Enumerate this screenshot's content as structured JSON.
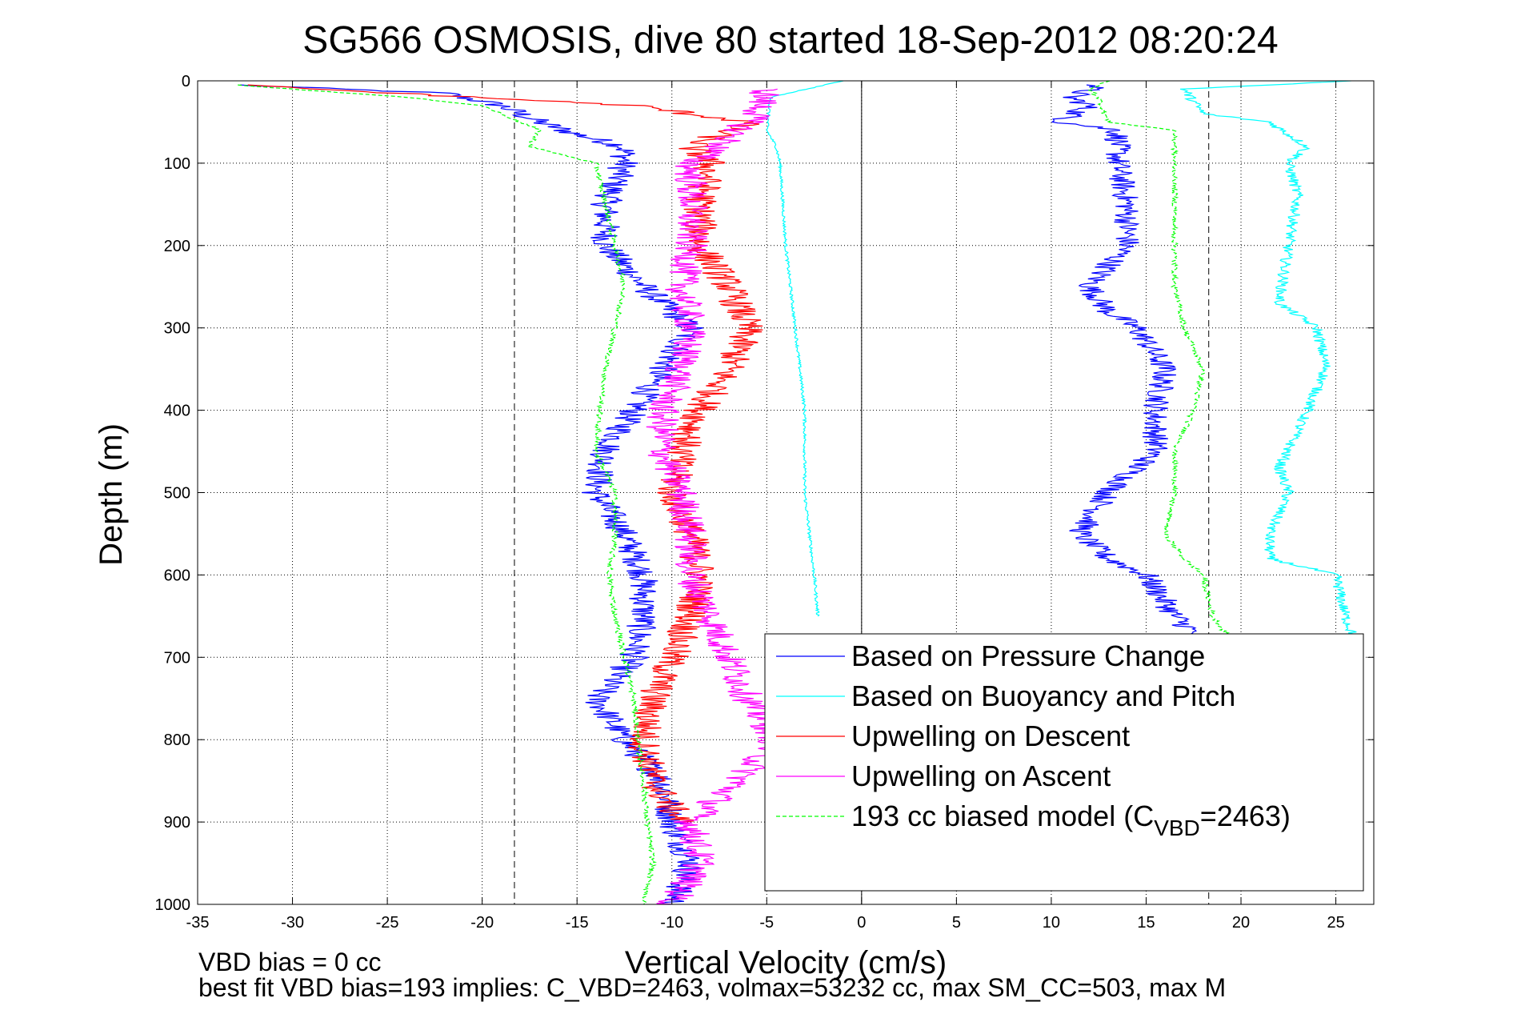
{
  "chart_data": {
    "type": "line",
    "title": "SG566 OSMOSIS, dive 80 started 18-Sep-2012 08:20:24",
    "xlabel": "Vertical Velocity (cm/s)",
    "ylabel": "Depth (m)",
    "xlim": [
      -35,
      27
    ],
    "ylim": [
      0,
      1000
    ],
    "y_reversed": true,
    "grid": true,
    "x_ticks": [
      "-35",
      "-30",
      "-25",
      "-20",
      "-15",
      "-10",
      "-5",
      "0",
      "5",
      "10",
      "15",
      "20",
      "25"
    ],
    "x_tick_values": [
      -35,
      -30,
      -25,
      -20,
      -15,
      -10,
      -5,
      0,
      5,
      10,
      15,
      20,
      25
    ],
    "y_ticks": [
      "0",
      "100",
      "200",
      "300",
      "400",
      "500",
      "600",
      "700",
      "800",
      "900",
      "1000"
    ],
    "y_tick_values": [
      0,
      100,
      200,
      300,
      400,
      500,
      600,
      700,
      800,
      900,
      1000
    ],
    "reference_lines": [
      {
        "x": 0,
        "style": "solid",
        "color": "#000000"
      },
      {
        "x": -18.3,
        "style": "dashed",
        "color": "#000000"
      },
      {
        "x": 18.3,
        "style": "dashed",
        "color": "#000000"
      }
    ],
    "legend_position": "lower-right",
    "legend": [
      {
        "label": "Based on Pressure Change",
        "color": "#0000ff",
        "dash": false
      },
      {
        "label": "Based on Buoyancy and Pitch",
        "color": "#00ffff",
        "dash": false
      },
      {
        "label": "Upwelling on Descent",
        "color": "#ff0000",
        "dash": false
      },
      {
        "label": "Upwelling on Ascent",
        "color": "#ff00ff",
        "dash": false
      },
      {
        "label_main": "193 cc biased model (C",
        "label_sub": "VBD",
        "label_tail": "=2463)",
        "color": "#00ff00",
        "dash": true
      }
    ],
    "series": [
      {
        "name": "Based on Pressure Change (descent)",
        "color": "#0000ff",
        "dash": false,
        "noise": 0.8,
        "points": [
          [
            -33,
            5
          ],
          [
            -22,
            15
          ],
          [
            -19,
            30
          ],
          [
            -17,
            50
          ],
          [
            -15,
            65
          ],
          [
            -12.5,
            80
          ],
          [
            -12.5,
            100
          ],
          [
            -13.5,
            150
          ],
          [
            -13.5,
            200
          ],
          [
            -11.5,
            250
          ],
          [
            -9,
            300
          ],
          [
            -10.5,
            350
          ],
          [
            -12,
            400
          ],
          [
            -13.5,
            450
          ],
          [
            -14,
            500
          ],
          [
            -12.5,
            550
          ],
          [
            -11.5,
            600
          ],
          [
            -11.5,
            650
          ],
          [
            -12,
            700
          ],
          [
            -14,
            750
          ],
          [
            -12.5,
            800
          ],
          [
            -10.5,
            850
          ],
          [
            -10,
            900
          ],
          [
            -9,
            950
          ],
          [
            -10,
            1000
          ]
        ]
      },
      {
        "name": "Based on Pressure Change (ascent)",
        "color": "#0000ff",
        "dash": false,
        "noise": 0.7,
        "points": [
          [
            12.5,
            5
          ],
          [
            11,
            20
          ],
          [
            12,
            30
          ],
          [
            10.5,
            50
          ],
          [
            13.5,
            60
          ],
          [
            13.5,
            100
          ],
          [
            14,
            150
          ],
          [
            14,
            200
          ],
          [
            12,
            250
          ],
          [
            13,
            280
          ],
          [
            14.5,
            300
          ],
          [
            16,
            350
          ],
          [
            15.5,
            400
          ],
          [
            15.5,
            450
          ],
          [
            13,
            500
          ],
          [
            11.5,
            550
          ],
          [
            13,
            580
          ],
          [
            15,
            600
          ],
          [
            16.5,
            650
          ],
          [
            18,
            680
          ]
        ]
      },
      {
        "name": "Based on Buoyancy and Pitch (descent)",
        "color": "#00ffff",
        "dash": false,
        "noise": 0.08,
        "points": [
          [
            -1,
            0
          ],
          [
            -4.8,
            20
          ],
          [
            -5,
            60
          ],
          [
            -4.5,
            80
          ],
          [
            -4.3,
            100
          ],
          [
            -4,
            200
          ],
          [
            -3.5,
            300
          ],
          [
            -3,
            400
          ],
          [
            -3,
            500
          ],
          [
            -2.5,
            600
          ],
          [
            -2.3,
            650
          ]
        ]
      },
      {
        "name": "Based on Buoyancy and Pitch (ascent)",
        "color": "#00ffff",
        "dash": false,
        "noise": 0.3,
        "points": [
          [
            26,
            0
          ],
          [
            17,
            10
          ],
          [
            18,
            40
          ],
          [
            21.5,
            50
          ],
          [
            23.5,
            80
          ],
          [
            22.5,
            100
          ],
          [
            23,
            140
          ],
          [
            22.5,
            200
          ],
          [
            22,
            270
          ],
          [
            24,
            300
          ],
          [
            24.5,
            350
          ],
          [
            23.5,
            400
          ],
          [
            22,
            470
          ],
          [
            22.5,
            500
          ],
          [
            21.5,
            550
          ],
          [
            21.5,
            580
          ],
          [
            25,
            600
          ],
          [
            25.5,
            650
          ],
          [
            26,
            680
          ]
        ]
      },
      {
        "name": "Upwelling on Descent",
        "color": "#ff0000",
        "dash": false,
        "noise": 0.9,
        "points": [
          [
            -33,
            5
          ],
          [
            -12,
            30
          ],
          [
            -6,
            50
          ],
          [
            -7,
            60
          ],
          [
            -9,
            80
          ],
          [
            -8,
            100
          ],
          [
            -8.5,
            150
          ],
          [
            -8.5,
            200
          ],
          [
            -7,
            250
          ],
          [
            -6,
            300
          ],
          [
            -7,
            350
          ],
          [
            -8.5,
            400
          ],
          [
            -9.5,
            450
          ],
          [
            -10,
            500
          ],
          [
            -9,
            550
          ],
          [
            -8.5,
            600
          ],
          [
            -9,
            650
          ],
          [
            -10,
            700
          ],
          [
            -11,
            750
          ],
          [
            -11.5,
            800
          ],
          [
            -11,
            850
          ],
          [
            -9.5,
            900
          ]
        ]
      },
      {
        "name": "Upwelling on Ascent",
        "color": "#ff00ff",
        "dash": false,
        "noise": 0.9,
        "points": [
          [
            -5,
            10
          ],
          [
            -5.5,
            40
          ],
          [
            -7.5,
            80
          ],
          [
            -9,
            100
          ],
          [
            -9,
            150
          ],
          [
            -9,
            200
          ],
          [
            -9.5,
            250
          ],
          [
            -9,
            300
          ],
          [
            -9.5,
            350
          ],
          [
            -10.5,
            400
          ],
          [
            -10.5,
            450
          ],
          [
            -9.5,
            500
          ],
          [
            -9,
            550
          ],
          [
            -9,
            600
          ],
          [
            -8,
            650
          ],
          [
            -7,
            700
          ],
          [
            -6,
            750
          ],
          [
            -4.5,
            800
          ],
          [
            -6.5,
            850
          ],
          [
            -9,
            900
          ],
          [
            -8.5,
            950
          ],
          [
            -10,
            1000
          ]
        ]
      },
      {
        "name": "193 cc biased model (descent)",
        "color": "#00ff00",
        "dash": true,
        "noise": 0.15,
        "points": [
          [
            -33,
            5
          ],
          [
            -24,
            20
          ],
          [
            -20,
            30
          ],
          [
            -17,
            60
          ],
          [
            -17.5,
            80
          ],
          [
            -14,
            100
          ],
          [
            -13.5,
            150
          ],
          [
            -13,
            200
          ],
          [
            -12.5,
            250
          ],
          [
            -13,
            300
          ],
          [
            -13.5,
            350
          ],
          [
            -13.8,
            400
          ],
          [
            -14,
            450
          ],
          [
            -13,
            500
          ],
          [
            -13,
            550
          ],
          [
            -13.3,
            600
          ],
          [
            -13,
            650
          ],
          [
            -12.5,
            700
          ],
          [
            -12,
            750
          ],
          [
            -11.8,
            800
          ],
          [
            -11.5,
            850
          ],
          [
            -11.3,
            900
          ],
          [
            -11,
            950
          ],
          [
            -11.5,
            1000
          ]
        ]
      },
      {
        "name": "193 cc biased model (ascent)",
        "color": "#00ff00",
        "dash": true,
        "noise": 0.15,
        "points": [
          [
            13,
            0
          ],
          [
            12,
            10
          ],
          [
            12.5,
            20
          ],
          [
            13,
            50
          ],
          [
            16.5,
            60
          ],
          [
            16.5,
            100
          ],
          [
            16.5,
            150
          ],
          [
            16.5,
            200
          ],
          [
            16.5,
            250
          ],
          [
            17,
            300
          ],
          [
            18,
            350
          ],
          [
            17.5,
            400
          ],
          [
            16.5,
            450
          ],
          [
            16.5,
            500
          ],
          [
            16,
            550
          ],
          [
            17,
            580
          ],
          [
            18,
            600
          ],
          [
            18.5,
            650
          ],
          [
            19.5,
            680
          ]
        ]
      }
    ]
  },
  "footer": {
    "vbd_bias": "VBD bias = 0 cc",
    "best_fit": "best fit VBD bias=193 implies: C_VBD=2463, volmax=53232 cc, max SM_CC=503, max M"
  }
}
